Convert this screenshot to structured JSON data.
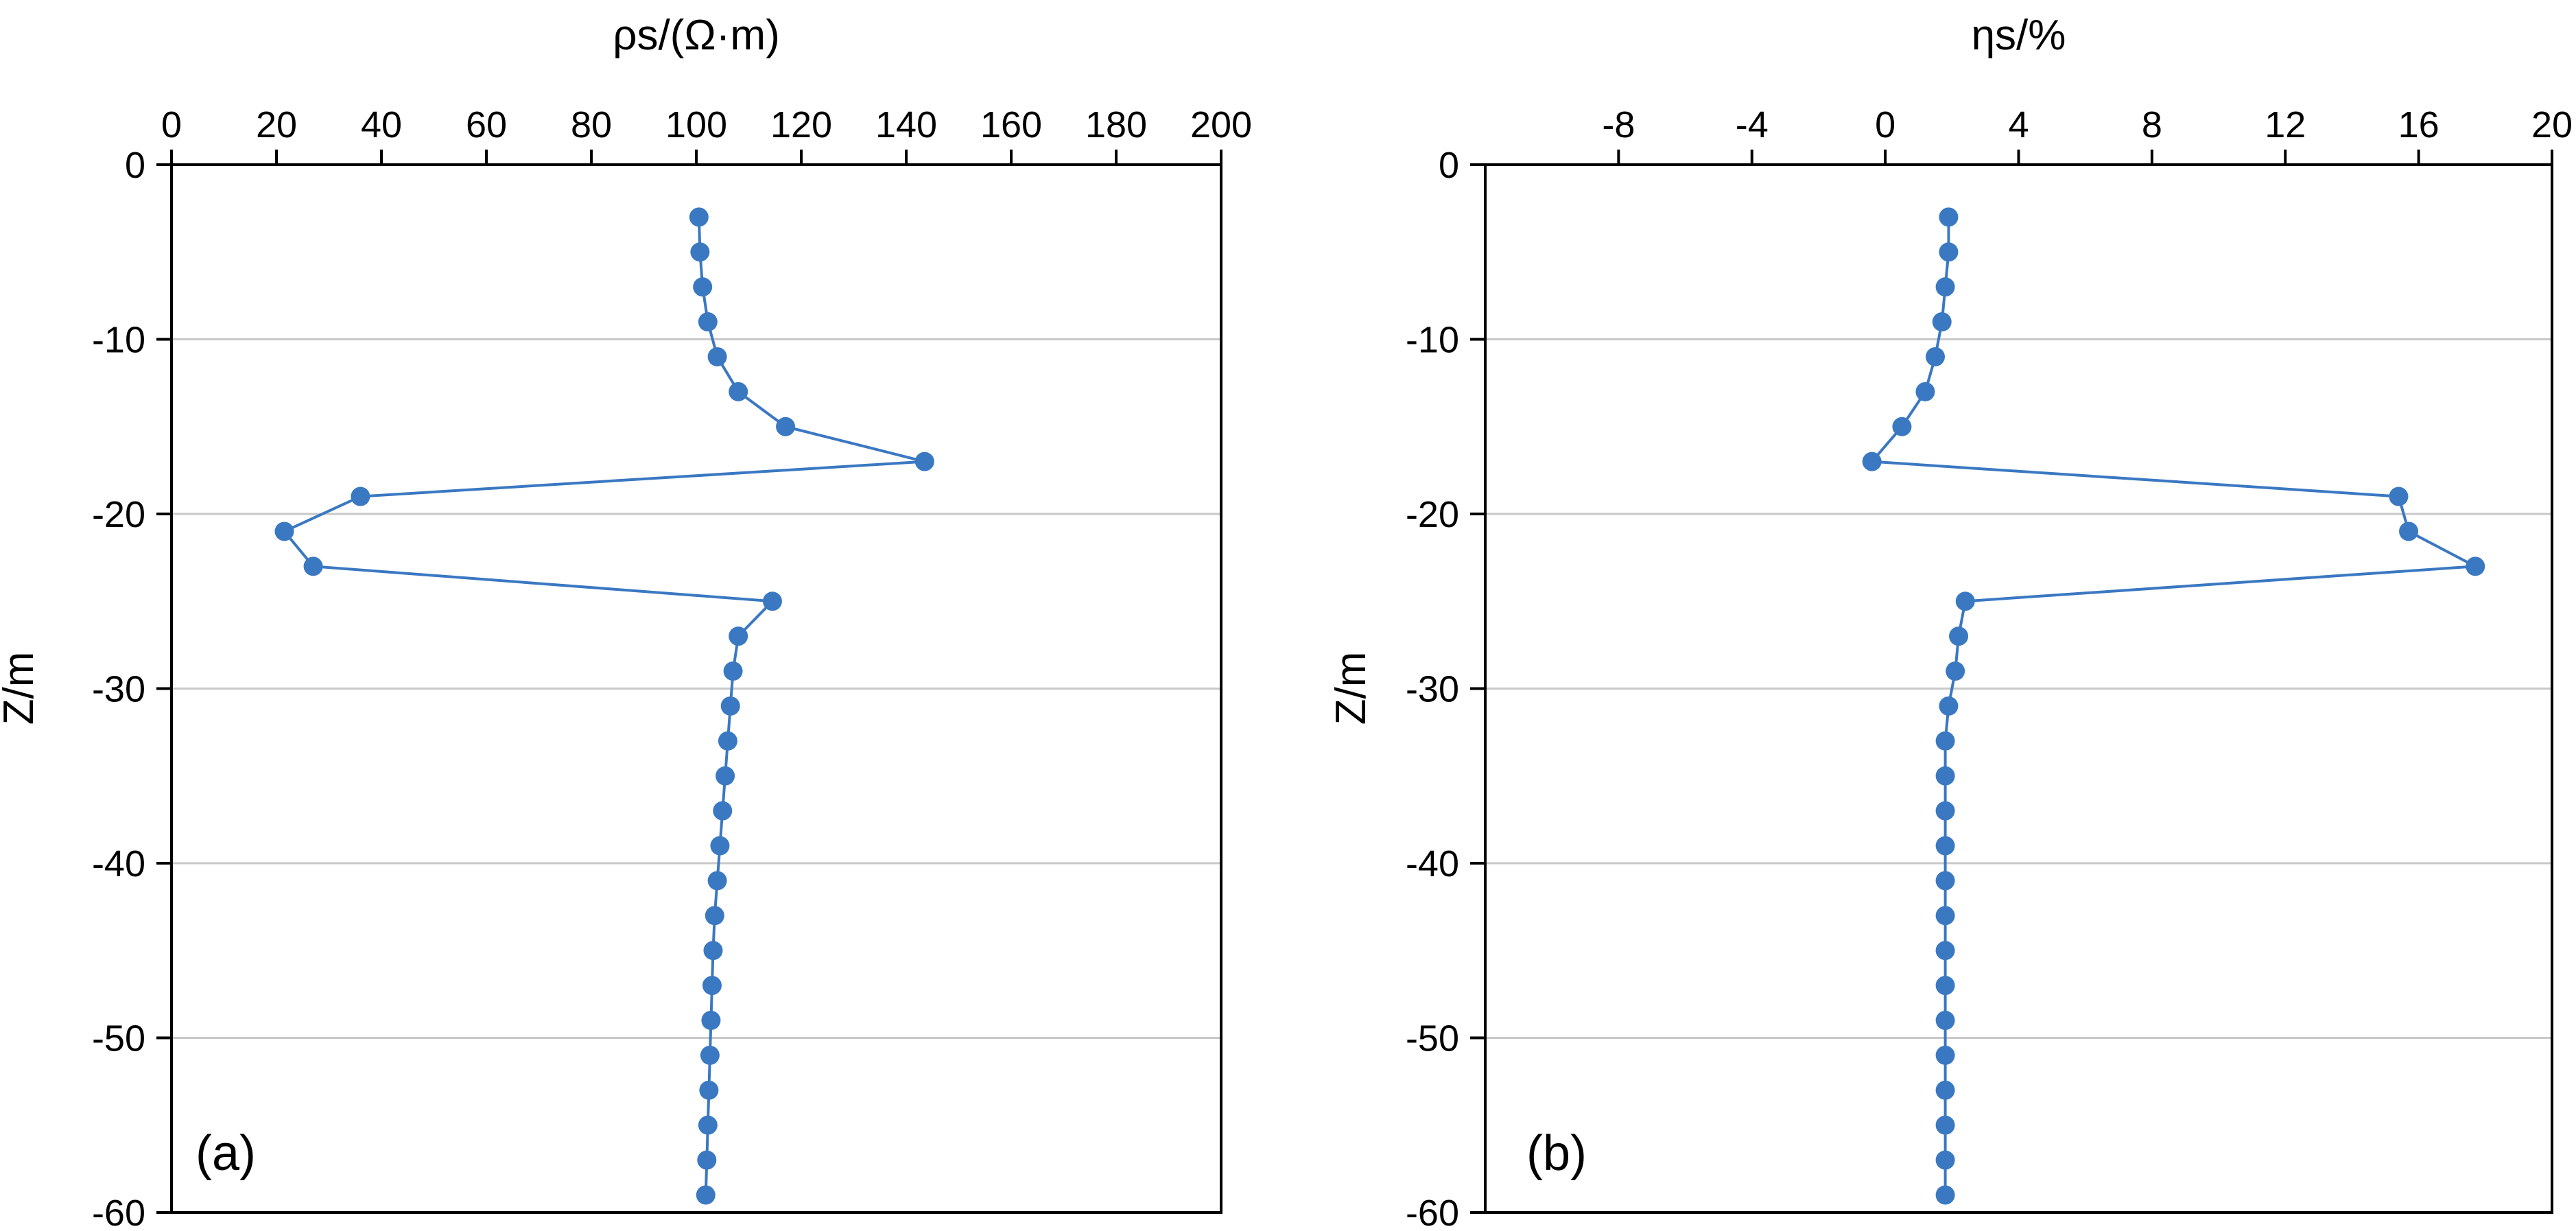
{
  "chart_data": [
    {
      "type": "line",
      "panel_label": "(a)",
      "xlabel": "ρs/(Ω·m)",
      "ylabel": "Z/m",
      "xaxis_position": "top",
      "xlim": [
        0,
        200
      ],
      "ylim": [
        -60,
        0
      ],
      "x_ticks": [
        "0",
        "20",
        "40",
        "60",
        "80",
        "100",
        "120",
        "140",
        "160",
        "180",
        "200"
      ],
      "y_ticks": [
        "0",
        "-10",
        "-20",
        "-30",
        "-40",
        "-50",
        "-60"
      ],
      "grid": "horizontal",
      "color": "#3a78c2",
      "series": [
        {
          "markers": "circle",
          "points": [
            {
              "x": 100.5,
              "y": -3
            },
            {
              "x": 100.7,
              "y": -5
            },
            {
              "x": 101.2,
              "y": -7
            },
            {
              "x": 102.2,
              "y": -9
            },
            {
              "x": 104.0,
              "y": -11
            },
            {
              "x": 108.0,
              "y": -13
            },
            {
              "x": 117.0,
              "y": -15
            },
            {
              "x": 143.5,
              "y": -17
            },
            {
              "x": 36.0,
              "y": -19
            },
            {
              "x": 21.5,
              "y": -21
            },
            {
              "x": 27.0,
              "y": -23
            },
            {
              "x": 114.5,
              "y": -25
            },
            {
              "x": 108.0,
              "y": -27
            },
            {
              "x": 107.0,
              "y": -29
            },
            {
              "x": 106.5,
              "y": -31
            },
            {
              "x": 106.0,
              "y": -33
            },
            {
              "x": 105.5,
              "y": -35
            },
            {
              "x": 105.0,
              "y": -37
            },
            {
              "x": 104.5,
              "y": -39
            },
            {
              "x": 104.0,
              "y": -41
            },
            {
              "x": 103.5,
              "y": -43
            },
            {
              "x": 103.2,
              "y": -45
            },
            {
              "x": 103.0,
              "y": -47
            },
            {
              "x": 102.8,
              "y": -49
            },
            {
              "x": 102.6,
              "y": -51
            },
            {
              "x": 102.4,
              "y": -53
            },
            {
              "x": 102.2,
              "y": -55
            },
            {
              "x": 102.0,
              "y": -57
            },
            {
              "x": 101.8,
              "y": -59
            }
          ]
        }
      ]
    },
    {
      "type": "line",
      "panel_label": "(b)",
      "xlabel": "ηs/%",
      "ylabel": "Z/m",
      "xaxis_position": "top",
      "xlim": [
        -12,
        20
      ],
      "ylim": [
        -60,
        0
      ],
      "x_ticks": [
        "-8",
        "-4",
        "0",
        "4",
        "8",
        "12",
        "16",
        "20"
      ],
      "y_ticks": [
        "0",
        "-10",
        "-20",
        "-30",
        "-40",
        "-50",
        "-60"
      ],
      "grid": "horizontal",
      "color": "#3a78c2",
      "series": [
        {
          "markers": "circle",
          "points": [
            {
              "x": 1.9,
              "y": -3
            },
            {
              "x": 1.9,
              "y": -5
            },
            {
              "x": 1.8,
              "y": -7
            },
            {
              "x": 1.7,
              "y": -9
            },
            {
              "x": 1.5,
              "y": -11
            },
            {
              "x": 1.2,
              "y": -13
            },
            {
              "x": 0.5,
              "y": -15
            },
            {
              "x": -0.4,
              "y": -17
            },
            {
              "x": 15.4,
              "y": -19
            },
            {
              "x": 15.7,
              "y": -21
            },
            {
              "x": 17.7,
              "y": -23
            },
            {
              "x": 2.4,
              "y": -25
            },
            {
              "x": 2.2,
              "y": -27
            },
            {
              "x": 2.1,
              "y": -29
            },
            {
              "x": 1.9,
              "y": -31
            },
            {
              "x": 1.8,
              "y": -33
            },
            {
              "x": 1.8,
              "y": -35
            },
            {
              "x": 1.8,
              "y": -37
            },
            {
              "x": 1.8,
              "y": -39
            },
            {
              "x": 1.8,
              "y": -41
            },
            {
              "x": 1.8,
              "y": -43
            },
            {
              "x": 1.8,
              "y": -45
            },
            {
              "x": 1.8,
              "y": -47
            },
            {
              "x": 1.8,
              "y": -49
            },
            {
              "x": 1.8,
              "y": -51
            },
            {
              "x": 1.8,
              "y": -53
            },
            {
              "x": 1.8,
              "y": -55
            },
            {
              "x": 1.8,
              "y": -57
            },
            {
              "x": 1.8,
              "y": -59
            }
          ]
        }
      ]
    }
  ]
}
